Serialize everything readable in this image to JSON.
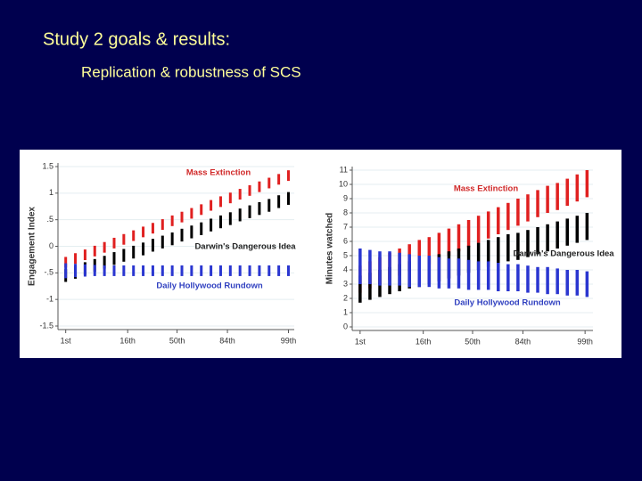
{
  "title": "Study 2 goals & results:",
  "subtitle": "Replication & robustness of SCS",
  "chart_data": [
    {
      "type": "range_bar",
      "ylabel": "Engagement Index",
      "x": [
        0,
        1,
        2,
        3,
        4,
        5,
        6,
        7,
        8,
        9,
        10,
        11,
        12,
        13,
        14,
        15,
        16,
        17,
        18,
        19,
        20,
        21,
        22,
        23
      ],
      "xlim": [
        -0.8,
        23.6
      ],
      "xticks": [
        {
          "value": 0,
          "label": "1st"
        },
        {
          "value": 6.4,
          "label": "16th"
        },
        {
          "value": 11.5,
          "label": "50th"
        },
        {
          "value": 16.7,
          "label": "84th"
        },
        {
          "value": 23,
          "label": "99th"
        }
      ],
      "ylim": [
        -1.5,
        1.5
      ],
      "yticks": [
        1.5,
        1,
        {
          "value": 0.5,
          "label": ".5"
        },
        0,
        {
          "value": -0.5,
          "label": "-.5"
        },
        -1,
        -1.5
      ],
      "grid": true,
      "series": [
        {
          "name": "Mass Extinction",
          "color": "#e02020",
          "low": [
            -0.4,
            -0.33,
            -0.26,
            -0.19,
            -0.12,
            -0.04,
            0.03,
            0.1,
            0.17,
            0.24,
            0.31,
            0.38,
            0.45,
            0.52,
            0.59,
            0.67,
            0.74,
            0.81,
            0.88,
            0.95,
            1.02,
            1.09,
            1.16,
            1.23
          ],
          "high": [
            -0.2,
            -0.13,
            -0.06,
            0.01,
            0.08,
            0.16,
            0.23,
            0.3,
            0.37,
            0.44,
            0.51,
            0.58,
            0.65,
            0.72,
            0.79,
            0.87,
            0.94,
            1.01,
            1.08,
            1.15,
            1.22,
            1.29,
            1.36,
            1.43
          ]
        },
        {
          "name": "Darwin's Dangerous Idea",
          "color": "#000000",
          "low": [
            -0.67,
            -0.61,
            -0.54,
            -0.48,
            -0.42,
            -0.35,
            -0.29,
            -0.23,
            -0.17,
            -0.1,
            -0.04,
            0.02,
            0.09,
            0.15,
            0.21,
            0.28,
            0.34,
            0.4,
            0.47,
            0.53,
            0.59,
            0.65,
            0.72,
            0.78
          ],
          "high": [
            -0.43,
            -0.37,
            -0.3,
            -0.24,
            -0.18,
            -0.11,
            -0.05,
            0.01,
            0.07,
            0.14,
            0.2,
            0.26,
            0.33,
            0.39,
            0.45,
            0.52,
            0.58,
            0.64,
            0.71,
            0.77,
            0.83,
            0.89,
            0.96,
            1.02
          ]
        },
        {
          "name": "Daily Hollywood Rundown",
          "color": "#2a36d0",
          "low": [
            -0.6,
            -0.58,
            -0.57,
            -0.56,
            -0.56,
            -0.56,
            -0.56,
            -0.56,
            -0.56,
            -0.56,
            -0.56,
            -0.56,
            -0.56,
            -0.56,
            -0.56,
            -0.56,
            -0.56,
            -0.56,
            -0.56,
            -0.56,
            -0.56,
            -0.56,
            -0.56,
            -0.56
          ],
          "high": [
            -0.32,
            -0.33,
            -0.34,
            -0.35,
            -0.36,
            -0.36,
            -0.36,
            -0.36,
            -0.36,
            -0.36,
            -0.36,
            -0.36,
            -0.36,
            -0.36,
            -0.36,
            -0.36,
            -0.36,
            -0.36,
            -0.36,
            -0.36,
            -0.36,
            -0.36,
            -0.36,
            -0.36
          ]
        }
      ]
    },
    {
      "type": "range_bar",
      "ylabel": "Minutes watched",
      "x": [
        0,
        1,
        2,
        3,
        4,
        5,
        6,
        7,
        8,
        9,
        10,
        11,
        12,
        13,
        14,
        15,
        16,
        17,
        18,
        19,
        20,
        21,
        22,
        23
      ],
      "xlim": [
        -0.8,
        23.6
      ],
      "xticks": [
        {
          "value": 0,
          "label": "1st"
        },
        {
          "value": 6.4,
          "label": "16th"
        },
        {
          "value": 11.4,
          "label": "50th"
        },
        {
          "value": 16.5,
          "label": "84th"
        },
        {
          "value": 22.8,
          "label": "99th"
        }
      ],
      "ylim": [
        0,
        11
      ],
      "yticks": [
        0,
        1,
        2,
        3,
        4,
        5,
        6,
        7,
        8,
        9,
        10,
        11
      ],
      "grid": true,
      "series": [
        {
          "name": "Mass Extinction",
          "color": "#e02020",
          "low": [
            2.4,
            2.7,
            3.0,
            3.3,
            3.6,
            3.9,
            4.2,
            4.4,
            4.7,
            5.0,
            5.3,
            5.6,
            5.9,
            6.2,
            6.5,
            6.8,
            7.1,
            7.4,
            7.7,
            8.0,
            8.2,
            8.5,
            8.8,
            9.1
          ],
          "high": [
            4.3,
            4.6,
            4.9,
            5.2,
            5.5,
            5.8,
            6.1,
            6.3,
            6.6,
            6.9,
            7.2,
            7.5,
            7.8,
            8.1,
            8.4,
            8.7,
            9.0,
            9.3,
            9.6,
            9.9,
            10.1,
            10.4,
            10.7,
            11.0
          ]
        },
        {
          "name": "Darwin's Dangerous Idea",
          "color": "#000000",
          "low": [
            1.7,
            1.9,
            2.1,
            2.3,
            2.5,
            2.7,
            2.8,
            3.0,
            3.2,
            3.4,
            3.6,
            3.8,
            4.0,
            4.2,
            4.4,
            4.6,
            4.7,
            4.9,
            5.1,
            5.3,
            5.5,
            5.7,
            5.9,
            6.1
          ],
          "high": [
            3.6,
            3.8,
            4.0,
            4.2,
            4.4,
            4.6,
            4.7,
            4.9,
            5.1,
            5.3,
            5.5,
            5.7,
            5.9,
            6.1,
            6.3,
            6.5,
            6.6,
            6.8,
            7.0,
            7.2,
            7.4,
            7.6,
            7.8,
            8.0
          ]
        },
        {
          "name": "Daily Hollywood Rundown",
          "color": "#2a36d0",
          "low": [
            3.0,
            3.0,
            2.9,
            2.9,
            2.9,
            2.8,
            2.8,
            2.8,
            2.7,
            2.7,
            2.7,
            2.6,
            2.6,
            2.6,
            2.5,
            2.5,
            2.5,
            2.4,
            2.4,
            2.3,
            2.3,
            2.2,
            2.2,
            2.1
          ],
          "high": [
            5.5,
            5.4,
            5.3,
            5.3,
            5.2,
            5.1,
            5.0,
            5.0,
            4.9,
            4.8,
            4.8,
            4.7,
            4.6,
            4.6,
            4.5,
            4.4,
            4.4,
            4.3,
            4.2,
            4.2,
            4.1,
            4.0,
            4.0,
            3.9
          ]
        }
      ]
    }
  ]
}
